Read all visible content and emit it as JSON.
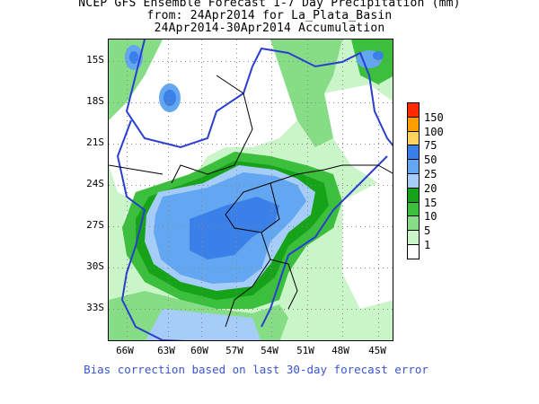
{
  "title": {
    "line1": "NCEP GFS Ensemble Forecast 1-7 Day Precipitation (mm)",
    "line2": "from: 24Apr2014   for La_Plata_Basin",
    "line3": "24Apr2014-30Apr2014 Accumulation"
  },
  "y_axis": {
    "ticks": [
      "15S",
      "18S",
      "21S",
      "24S",
      "27S",
      "30S",
      "33S"
    ]
  },
  "x_axis": {
    "ticks": [
      "66W",
      "63W",
      "60W",
      "57W",
      "54W",
      "51W",
      "48W",
      "45W"
    ]
  },
  "legend": {
    "items": [
      {
        "label": "150",
        "color": "#ff2a00"
      },
      {
        "label": "100",
        "color": "#ff9e00"
      },
      {
        "label": "75",
        "color": "#ffd25e"
      },
      {
        "label": "50",
        "color": "#3b7fe8"
      },
      {
        "label": "25",
        "color": "#63a6f1"
      },
      {
        "label": "20",
        "color": "#a5cdf8"
      },
      {
        "label": "15",
        "color": "#16a31a"
      },
      {
        "label": "10",
        "color": "#3cbf3c"
      },
      {
        "label": "5",
        "color": "#86dd86"
      },
      {
        "label": "1",
        "color": "#c9f5c9"
      },
      {
        "label": "",
        "color": "#ffffff"
      }
    ]
  },
  "footer": "Bias correction based on last 30-day forecast error"
}
